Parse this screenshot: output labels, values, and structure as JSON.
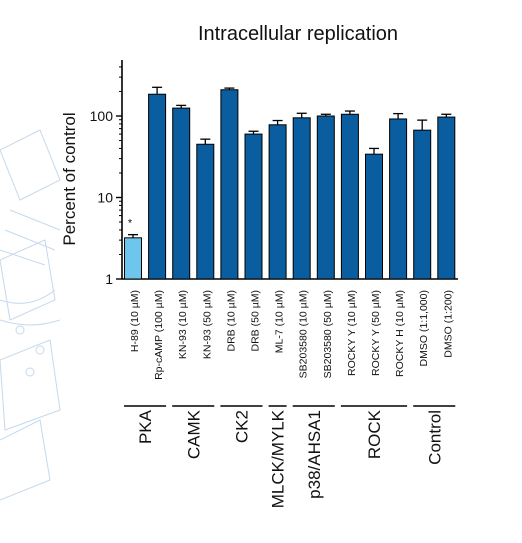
{
  "chart_data": {
    "type": "bar",
    "title": "Intracellular replication",
    "ylabel": "Percent of control",
    "yscale": "log",
    "ylim": [
      1,
      500
    ],
    "yticks": [
      {
        "value": 1,
        "label": "1"
      },
      {
        "value": 10,
        "label": "10"
      },
      {
        "value": 100,
        "label": "100"
      }
    ],
    "categories": [
      "H-89 (10 µM)",
      "Rp-cAMP (100 µM)",
      "KN-93 (10 µM)",
      "KN-93 (50 µM)",
      "DRB (10 µM)",
      "DRB (50 µM)",
      "ML-7 (10 µM)",
      "SB203580 (10 µM)",
      "SB203580 (50 µM)",
      "ROCKY Y (10 µM)",
      "ROCKY Y (50 µM)",
      "ROCKY H (10 µM)",
      "DMSO (1:1,000)",
      "DMSO (1:200)"
    ],
    "values": [
      3.2,
      185,
      125,
      45,
      210,
      60,
      78,
      95,
      100,
      105,
      34,
      92,
      67,
      97
    ],
    "error": [
      0.3,
      40,
      10,
      7,
      10,
      5,
      10,
      13,
      5,
      10,
      6,
      15,
      22,
      8
    ],
    "bar_colors": [
      "#6ec6ee",
      "#0a5d9e",
      "#0a5d9e",
      "#0a5d9e",
      "#0a5d9e",
      "#0a5d9e",
      "#0a5d9e",
      "#0a5d9e",
      "#0a5d9e",
      "#0a5d9e",
      "#0a5d9e",
      "#0a5d9e",
      "#0a5d9e",
      "#0a5d9e"
    ],
    "annotations": [
      {
        "category_index": 0,
        "text": "*"
      }
    ],
    "groups": [
      {
        "label": "PKA",
        "start": 0,
        "end": 1
      },
      {
        "label": "CAMK",
        "start": 2,
        "end": 3
      },
      {
        "label": "CK2",
        "start": 4,
        "end": 5
      },
      {
        "label": "MLCK/MYLK",
        "start": 6,
        "end": 6
      },
      {
        "label": "p38/AHSA1",
        "start": 7,
        "end": 8
      },
      {
        "label": "ROCK",
        "start": 9,
        "end": 11
      },
      {
        "label": "Control",
        "start": 12,
        "end": 13
      }
    ],
    "grid": false,
    "legend": "none"
  }
}
